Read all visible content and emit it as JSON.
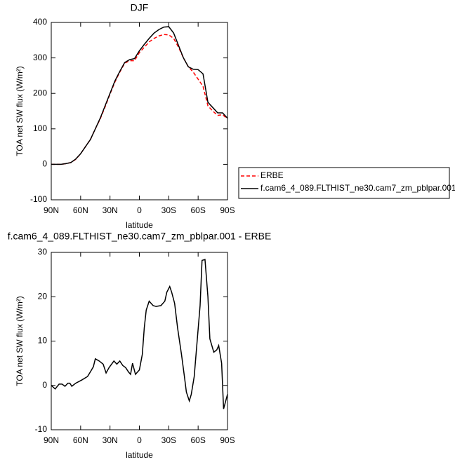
{
  "chart_data": [
    {
      "type": "line",
      "title": "DJF",
      "x_label": "latitude",
      "y_label": "TOA net SW flux (W/m²)",
      "x": [
        90,
        85,
        80,
        75,
        70,
        65,
        60,
        55,
        50,
        45,
        40,
        35,
        30,
        25,
        20,
        15,
        10,
        5,
        0,
        -5,
        -10,
        -15,
        -20,
        -25,
        -30,
        -35,
        -40,
        -45,
        -50,
        -55,
        -60,
        -65,
        -70,
        -75,
        -80,
        -85,
        -90
      ],
      "series": [
        {
          "name": "ERBE",
          "color": "#ff0000",
          "dash": true,
          "values": [
            0,
            0,
            0,
            2,
            5,
            14,
            30,
            50,
            70,
            100,
            128,
            162,
            198,
            232,
            260,
            285,
            292,
            292,
            315,
            330,
            345,
            355,
            362,
            366,
            365,
            355,
            330,
            300,
            275,
            260,
            240,
            220,
            165,
            150,
            138,
            140,
            128
          ]
        },
        {
          "name": "f.cam6_4_089.FLTHIST_ne30.cam7_zm_pblpar.001",
          "color": "#000000",
          "dash": false,
          "values": [
            0,
            0,
            0,
            2,
            5,
            15,
            30,
            50,
            70,
            100,
            130,
            165,
            200,
            235,
            262,
            287,
            295,
            298,
            320,
            338,
            355,
            370,
            380,
            387,
            388,
            370,
            335,
            300,
            275,
            268,
            267,
            255,
            175,
            160,
            145,
            145,
            130
          ]
        }
      ],
      "xlim": [
        90,
        -90
      ],
      "xticks": [
        {
          "value": 90,
          "label": "90N"
        },
        {
          "value": 60,
          "label": "60N"
        },
        {
          "value": 30,
          "label": "30N"
        },
        0,
        {
          "value": -30,
          "label": "30S"
        },
        {
          "value": -60,
          "label": "60S"
        },
        {
          "value": -90,
          "label": "90S"
        }
      ],
      "ylim": [
        -100,
        400
      ],
      "yticks": [
        -100,
        0,
        100,
        200,
        300,
        400
      ],
      "legend": "right"
    },
    {
      "type": "line",
      "title": "f.cam6_4_089.FLTHIST_ne30.cam7_zm_pblpar.001 - ERBE",
      "x_label": "latitude",
      "y_label": "TOA net SW flux (W/m²)",
      "x": [
        90,
        86,
        82,
        79,
        76,
        73,
        71,
        69,
        65,
        59,
        53,
        51,
        47,
        45,
        41,
        37,
        34,
        31,
        26,
        23,
        20,
        17,
        14,
        11,
        9,
        7,
        4,
        0,
        -3,
        -5,
        -7,
        -10,
        -14,
        -17,
        -22,
        -26,
        -28,
        -31,
        -33,
        -36,
        -39,
        -43,
        -46,
        -48,
        -51,
        -53,
        -56,
        -59,
        -62,
        -64,
        -67,
        -70,
        -72,
        -76,
        -79,
        -81,
        -84,
        -86,
        -90
      ],
      "series": [
        {
          "color": "#000000",
          "dash": false,
          "values": [
            0,
            -0.8,
            0.3,
            0.3,
            -0.2,
            0.5,
            0.5,
            -0.2,
            0.5,
            1.2,
            2,
            2.7,
            4.2,
            6,
            5.5,
            4.8,
            2.8,
            4,
            5.5,
            4.8,
            5.5,
            4.5,
            4,
            3,
            2.5,
            5,
            2.5,
            3.5,
            7,
            13,
            17,
            19,
            18,
            17.8,
            18,
            19,
            21,
            22.3,
            21,
            18.5,
            13,
            7,
            2,
            -1.5,
            -3.5,
            -2,
            2,
            10,
            18,
            28.2,
            28.4,
            20,
            10.5,
            7.5,
            8,
            9,
            5,
            -5.3,
            -2
          ]
        }
      ],
      "xlim": [
        90,
        -90
      ],
      "xticks": [
        {
          "value": 90,
          "label": "90N"
        },
        {
          "value": 60,
          "label": "60N"
        },
        {
          "value": 30,
          "label": "30N"
        },
        0,
        {
          "value": -30,
          "label": "30S"
        },
        {
          "value": -60,
          "label": "60S"
        },
        {
          "value": -90,
          "label": "90S"
        }
      ],
      "ylim": [
        -10,
        30
      ],
      "yticks": [
        -10,
        0,
        10,
        20,
        30
      ]
    }
  ]
}
